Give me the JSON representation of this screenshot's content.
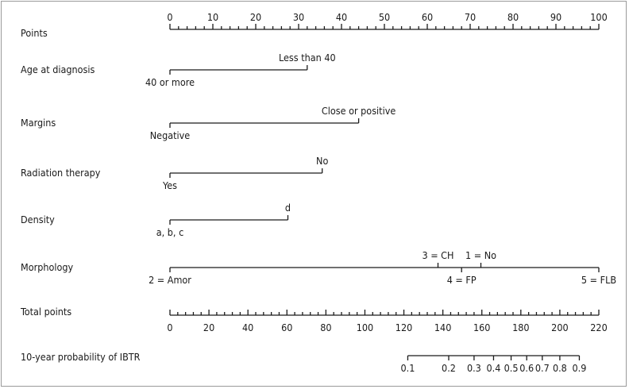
{
  "chart_data": {
    "type": "nomogram",
    "title": "",
    "points_scale": {
      "label": "Points",
      "min": 0,
      "max": 100,
      "major_step": 10,
      "minor_step": 2,
      "tick_labels": [
        "0",
        "10",
        "20",
        "30",
        "40",
        "50",
        "60",
        "70",
        "80",
        "90",
        "100"
      ]
    },
    "variables": [
      {
        "label": "Age at diagnosis",
        "levels": [
          {
            "name": "40 or more",
            "points": 0,
            "label_side": "below"
          },
          {
            "name": "Less than 40",
            "points": 32,
            "label_side": "above"
          }
        ]
      },
      {
        "label": "Margins",
        "levels": [
          {
            "name": "Negative",
            "points": 0,
            "label_side": "below"
          },
          {
            "name": "Close or positive",
            "points": 44,
            "label_side": "above"
          }
        ]
      },
      {
        "label": "Radiation therapy",
        "levels": [
          {
            "name": "Yes",
            "points": 0,
            "label_side": "below"
          },
          {
            "name": "No",
            "points": 35.5,
            "label_side": "above"
          }
        ]
      },
      {
        "label": "Density",
        "levels": [
          {
            "name": "a, b, c",
            "points": 0,
            "label_side": "below"
          },
          {
            "name": "d",
            "points": 27.5,
            "label_side": "above"
          }
        ]
      },
      {
        "label": "Morphology",
        "levels": [
          {
            "name": "2 = Amor",
            "points": 0,
            "label_side": "below"
          },
          {
            "name": "3 = CH",
            "points": 62.5,
            "label_side": "above"
          },
          {
            "name": "4 = FP",
            "points": 68,
            "label_side": "below"
          },
          {
            "name": "1 = No",
            "points": 72.5,
            "label_side": "above"
          },
          {
            "name": "5 = FLB",
            "points": 100,
            "label_side": "below"
          }
        ]
      }
    ],
    "total_points_scale": {
      "label": "Total points",
      "min": 0,
      "max": 220,
      "major_step": 20,
      "minor_step": 4,
      "tick_labels": [
        "0",
        "20",
        "40",
        "60",
        "80",
        "100",
        "120",
        "140",
        "160",
        "180",
        "200",
        "220"
      ]
    },
    "probability_scale": {
      "label": "10-year probability of IBTR",
      "ticks": [
        {
          "label": "0.1",
          "total_points": 122
        },
        {
          "label": "0.2",
          "total_points": 143
        },
        {
          "label": "0.3",
          "total_points": 156
        },
        {
          "label": "0.4",
          "total_points": 166
        },
        {
          "label": "0.5",
          "total_points": 175
        },
        {
          "label": "0.6",
          "total_points": 183
        },
        {
          "label": "0.7",
          "total_points": 191
        },
        {
          "label": "0.8",
          "total_points": 200
        },
        {
          "label": "0.9",
          "total_points": 210
        }
      ]
    }
  }
}
